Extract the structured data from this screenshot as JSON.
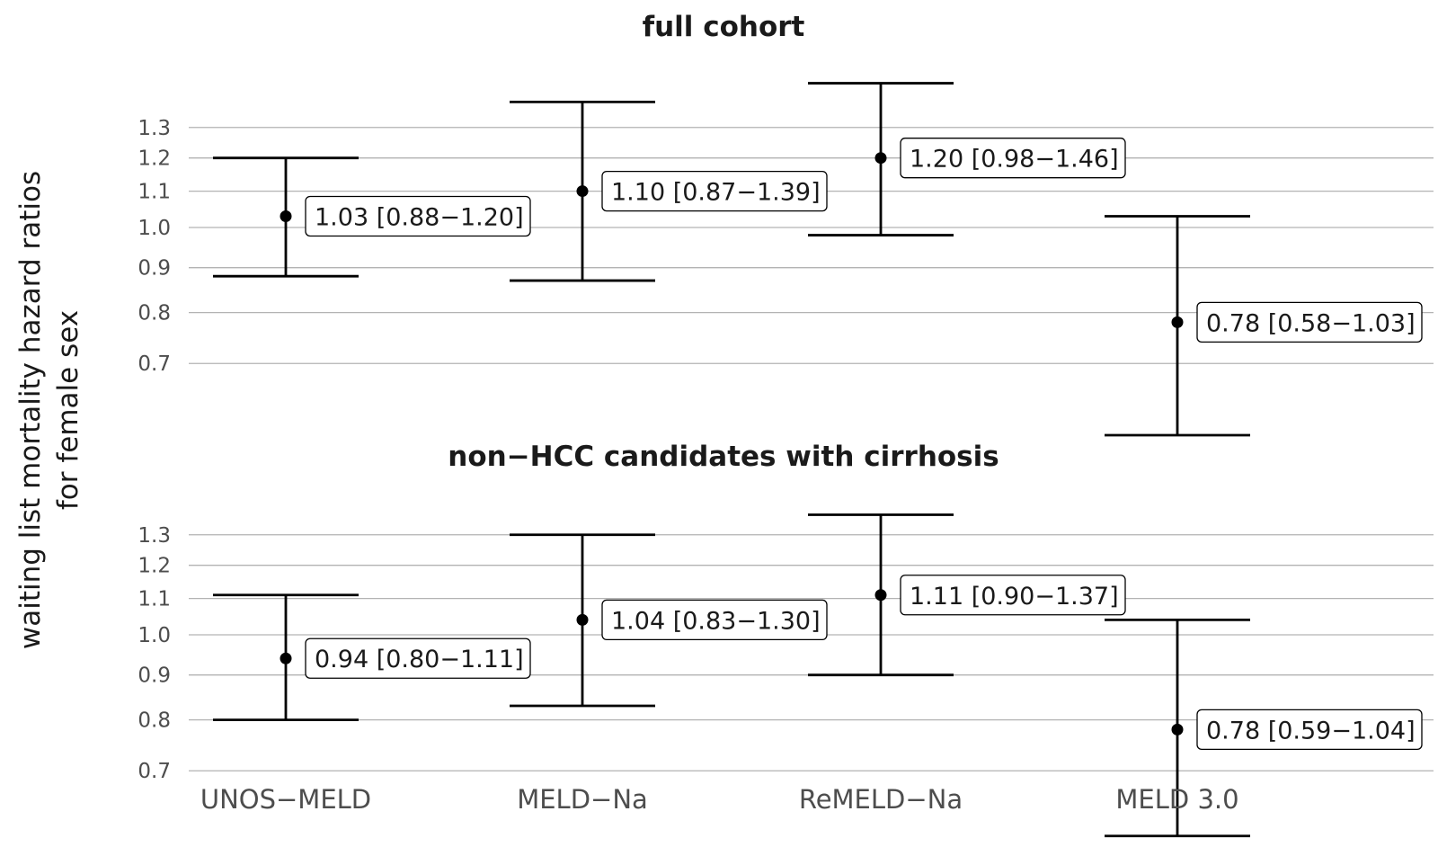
{
  "y_axis_label": [
    "waiting list mortality hazard ratios",
    "for female sex"
  ],
  "chart_data": [
    {
      "type": "scatter",
      "title": "full cohort",
      "categories": [
        "UNOS−MELD",
        "MELD−Na",
        "ReMELD−Na",
        "MELD 3.0"
      ],
      "y_ticks": [
        "0.7",
        "0.8",
        "0.9",
        "1.0",
        "1.1",
        "1.2",
        "1.3"
      ],
      "series": [
        {
          "estimate": [
            1.03,
            1.1,
            1.2,
            0.78
          ],
          "lower": [
            0.88,
            0.87,
            0.98,
            0.58
          ],
          "upper": [
            1.2,
            1.39,
            1.46,
            1.03
          ],
          "labels": [
            "1.03 [0.88−1.20]",
            "1.10 [0.87−1.39]",
            "1.20 [0.98−1.46]",
            "0.78 [0.58−1.03]"
          ]
        }
      ],
      "grid": true,
      "log_scale": true
    },
    {
      "type": "scatter",
      "title": "non−HCC candidates with cirrhosis",
      "categories": [
        "UNOS−MELD",
        "MELD−Na",
        "ReMELD−Na",
        "MELD 3.0"
      ],
      "y_ticks": [
        "0.7",
        "0.8",
        "0.9",
        "1.0",
        "1.1",
        "1.2",
        "1.3"
      ],
      "series": [
        {
          "estimate": [
            0.94,
            1.04,
            1.11,
            0.78
          ],
          "lower": [
            0.8,
            0.83,
            0.9,
            0.59
          ],
          "upper": [
            1.11,
            1.3,
            1.37,
            1.04
          ],
          "labels": [
            "0.94 [0.80−1.11]",
            "1.04 [0.83−1.30]",
            "1.11 [0.90−1.37]",
            "0.78 [0.59−1.04]"
          ]
        }
      ],
      "grid": true,
      "log_scale": true
    }
  ],
  "colors": {
    "marks": "#000000",
    "grid": "#b3b3b3",
    "tick_text": "#4d4d4d"
  }
}
